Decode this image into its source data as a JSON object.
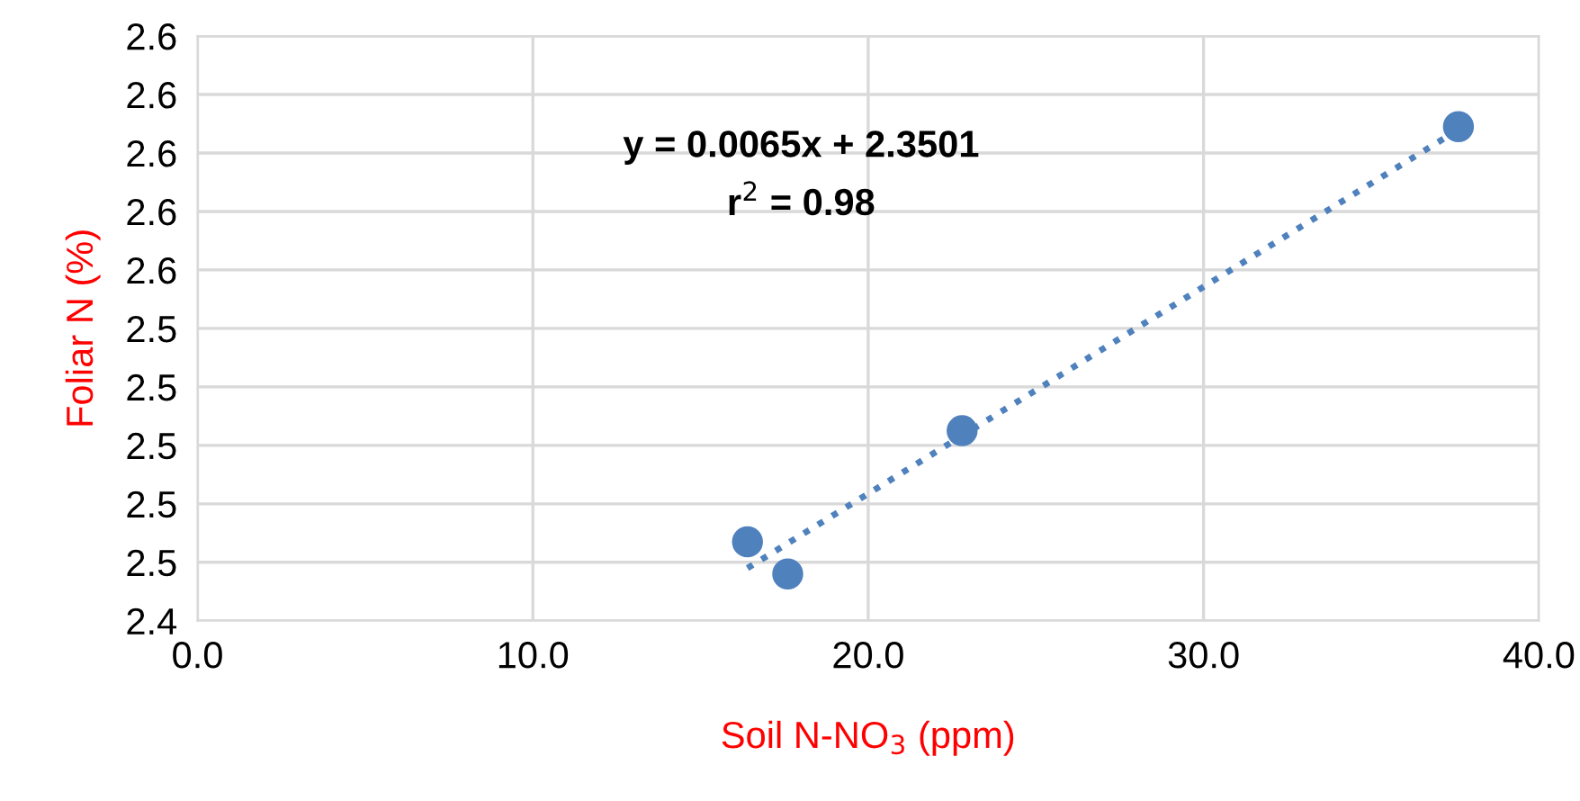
{
  "chart_data": {
    "type": "scatter",
    "xlabel": "Soil N-NO$_{3}$ (ppm)",
    "ylabel": "Foliar N (%)",
    "annotations": [
      "y = 0.0065x + 2.3501",
      "r$^{2}$ = 0.98"
    ],
    "series": [
      {
        "color": "#4f81bd",
        "marker": "circle",
        "x": [
          16.4,
          17.6,
          22.8,
          37.6
        ],
        "values": [
          2.467,
          2.456,
          2.505,
          2.609
        ]
      },
      {
        "type": "line",
        "color": "#4f81bd",
        "line_style": "dotted",
        "marker": "none",
        "x": [
          16.4,
          37.6
        ],
        "values": [
          2.458,
          2.608
        ]
      }
    ],
    "xlim": [
      0,
      40
    ],
    "xticks": [
      {
        "value": 0,
        "label": "0.0"
      },
      {
        "value": 10,
        "label": "10.0"
      },
      {
        "value": 20,
        "label": "20.0"
      },
      {
        "value": 30,
        "label": "30.0"
      },
      {
        "value": 40,
        "label": "40.0"
      }
    ],
    "ylim": [
      2.44,
      2.64
    ],
    "yticks": [
      {
        "value": 2.44,
        "label": "2.4"
      },
      {
        "value": 2.46,
        "label": "2.5"
      },
      {
        "value": 2.48,
        "label": "2.5"
      },
      {
        "value": 2.5,
        "label": "2.5"
      },
      {
        "value": 2.52,
        "label": "2.5"
      },
      {
        "value": 2.54,
        "label": "2.5"
      },
      {
        "value": 2.56,
        "label": "2.6"
      },
      {
        "value": 2.58,
        "label": "2.6"
      },
      {
        "value": 2.6,
        "label": "2.6"
      },
      {
        "value": 2.62,
        "label": "2.6"
      },
      {
        "value": 2.64,
        "label": "2.6"
      }
    ],
    "grid": true,
    "legend": false
  }
}
